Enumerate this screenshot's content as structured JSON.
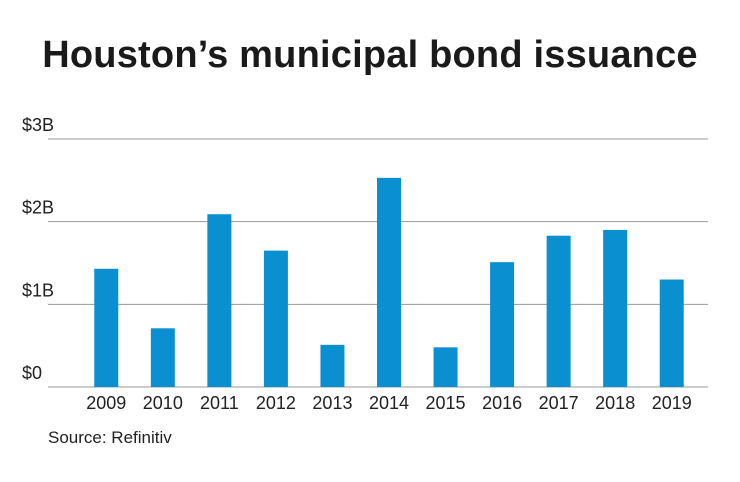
{
  "chart_data": {
    "type": "bar",
    "title": "Houston’s municipal bond issuance",
    "source": "Source: Refinitiv",
    "categories": [
      "2009",
      "2010",
      "2011",
      "2012",
      "2013",
      "2014",
      "2015",
      "2016",
      "2017",
      "2018",
      "2019"
    ],
    "values": [
      1.43,
      0.71,
      2.09,
      1.65,
      0.51,
      2.53,
      0.48,
      1.51,
      1.83,
      1.9,
      1.3
    ],
    "unit": "billions of dollars",
    "yticks": [
      {
        "value": 0,
        "label": "$0"
      },
      {
        "value": 1,
        "label": "$1B"
      },
      {
        "value": 2,
        "label": "$2B"
      },
      {
        "value": 3,
        "label": "$3B"
      }
    ],
    "ylim": [
      0,
      3
    ],
    "grid": true,
    "colors": {
      "bar": "#0a8fd1",
      "grid": "#9a9a9a"
    }
  }
}
